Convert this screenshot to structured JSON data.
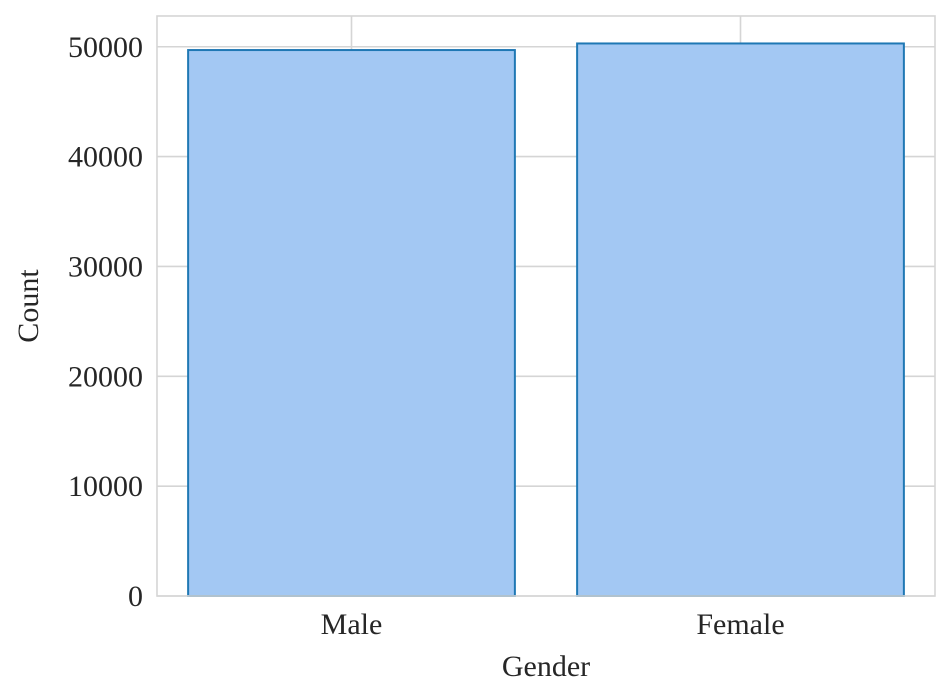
{
  "chart_data": {
    "type": "bar",
    "categories": [
      "Male",
      "Female"
    ],
    "values": [
      49700,
      50300
    ],
    "title": "",
    "xlabel": "Gender",
    "ylabel": "Count",
    "ylim": [
      0,
      52800
    ],
    "yticks": [
      0,
      10000,
      20000,
      30000,
      40000,
      50000
    ],
    "grid": true,
    "bar_fill_color": "#a3c8f3",
    "bar_edge_color": "#1f78b4",
    "grid_color": "#d5d5d5",
    "text_color": "#262626"
  }
}
